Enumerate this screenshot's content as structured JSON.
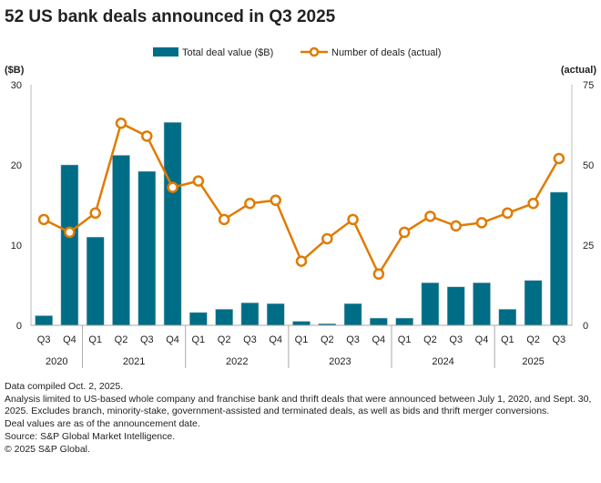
{
  "chart_data": {
    "type": "bar+line",
    "title": "52 US bank deals announced in Q3 2025",
    "categories": [
      "Q3",
      "Q4",
      "Q1",
      "Q2",
      "Q3",
      "Q4",
      "Q1",
      "Q2",
      "Q3",
      "Q4",
      "Q1",
      "Q2",
      "Q3",
      "Q4",
      "Q1",
      "Q2",
      "Q3",
      "Q4",
      "Q1",
      "Q2",
      "Q3"
    ],
    "year_groups": [
      {
        "year": "2020",
        "count": 2
      },
      {
        "year": "2021",
        "count": 4
      },
      {
        "year": "2022",
        "count": 4
      },
      {
        "year": "2023",
        "count": 4
      },
      {
        "year": "2024",
        "count": 4
      },
      {
        "year": "2025",
        "count": 3
      }
    ],
    "series": [
      {
        "name": "Total deal value ($B)",
        "type": "bar",
        "axis": "left",
        "color": "#006d87",
        "values": [
          1.2,
          20.0,
          11.0,
          21.2,
          19.2,
          25.3,
          1.6,
          2.0,
          2.8,
          2.7,
          0.5,
          0.2,
          2.7,
          0.9,
          0.9,
          5.3,
          4.8,
          5.3,
          2.0,
          5.6,
          16.6
        ]
      },
      {
        "name": "Number of deals (actual)",
        "type": "line",
        "axis": "right",
        "color": "#e07b00",
        "values": [
          33,
          29,
          35,
          63,
          59,
          43,
          45,
          33,
          38,
          39,
          20,
          27,
          33,
          16,
          29,
          34,
          31,
          32,
          35,
          38,
          52
        ]
      }
    ],
    "left_axis": {
      "label": "($B)",
      "ylim": [
        0,
        30
      ],
      "ticks": [
        "0",
        "10",
        "20",
        "30"
      ]
    },
    "right_axis": {
      "label": "(actual)",
      "ylim": [
        0,
        75
      ],
      "ticks": [
        "0",
        "25",
        "50",
        "75"
      ]
    },
    "legend_position": "top-center",
    "grid": false
  },
  "notes": [
    "Data compiled Oct. 2, 2025.",
    "Analysis limited to US-based whole company and franchise bank and thrift deals that were announced between July 1, 2020, and Sept. 30, 2025. Excludes branch, minority-stake, government-assisted and terminated deals, as well as bids and thrift merger conversions.",
    "Deal values are as of the announcement date.",
    "Source: S&P Global Market Intelligence.",
    "© 2025 S&P Global."
  ]
}
